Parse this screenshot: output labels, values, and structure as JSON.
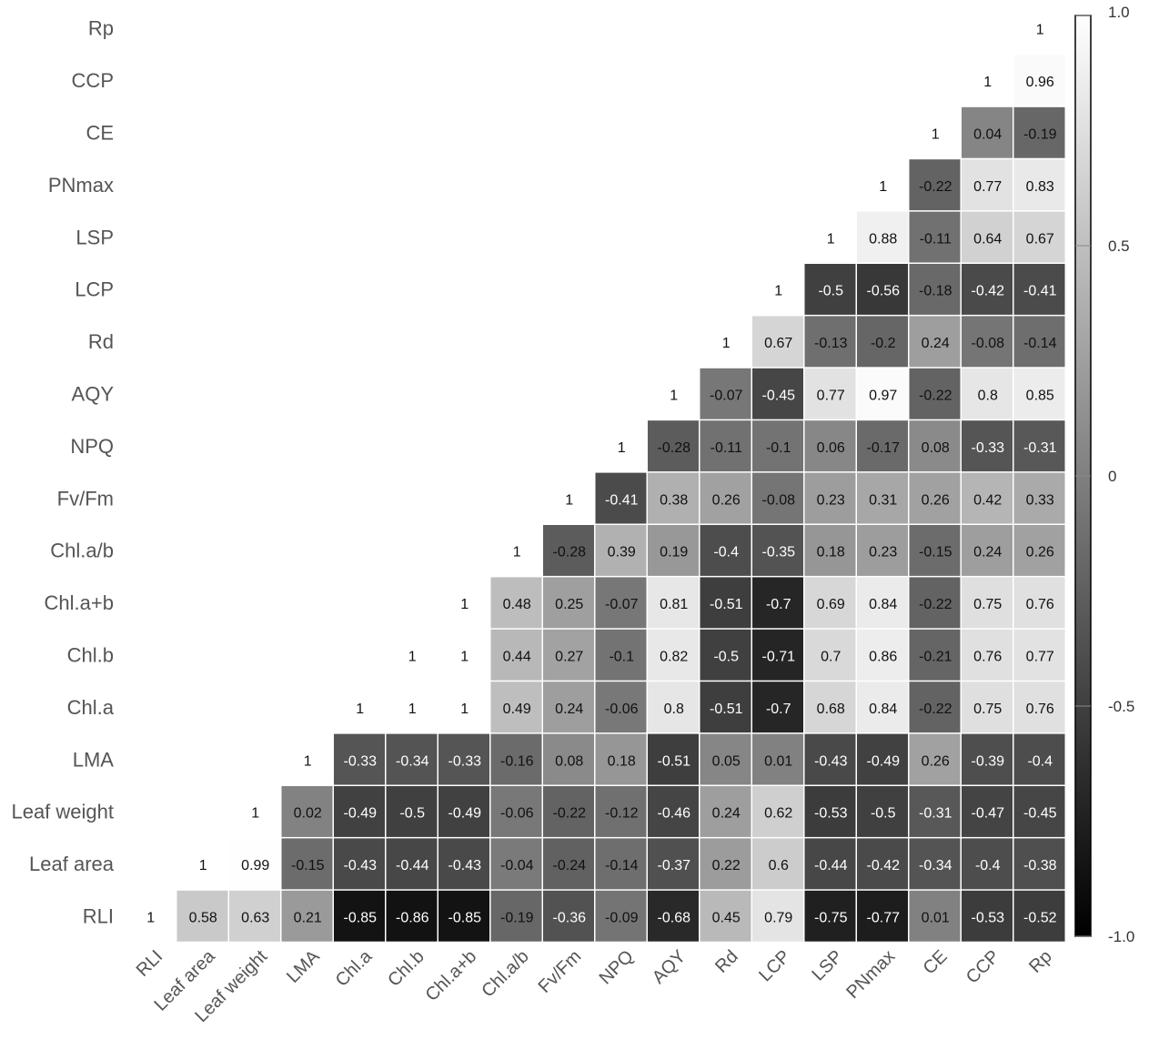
{
  "chart_data": {
    "type": "heatmap",
    "variables": [
      "RLI",
      "Leaf area",
      "Leaf weight",
      "LMA",
      "Chl.a",
      "Chl.b",
      "Chl.a+b",
      "Chl.a/b",
      "Fv/Fm",
      "NPQ",
      "AQY",
      "Rd",
      "LCP",
      "LSP",
      "PNmax",
      "CE",
      "CCP",
      "Rp"
    ],
    "row_order_top_to_bottom": [
      "Rp",
      "CCP",
      "CE",
      "PNmax",
      "LSP",
      "LCP",
      "Rd",
      "AQY",
      "NPQ",
      "Fv/Fm",
      "Chl.a/b",
      "Chl.a+b",
      "Chl.b",
      "Chl.a",
      "LMA",
      "Leaf weight",
      "Leaf area",
      "RLI"
    ],
    "column_order_left_to_right": [
      "RLI",
      "Leaf area",
      "Leaf weight",
      "LMA",
      "Chl.a",
      "Chl.b",
      "Chl.a+b",
      "Chl.a/b",
      "Fv/Fm",
      "NPQ",
      "AQY",
      "Rd",
      "LCP",
      "LSP",
      "PNmax",
      "CE",
      "CCP",
      "Rp"
    ],
    "rows": [
      {
        "name": "Rp",
        "values": [
          "1"
        ]
      },
      {
        "name": "CCP",
        "values": [
          "1",
          "0.96"
        ]
      },
      {
        "name": "CE",
        "values": [
          "1",
          "0.04",
          "-0.19"
        ]
      },
      {
        "name": "PNmax",
        "values": [
          "1",
          "-0.22",
          "0.77",
          "0.83"
        ]
      },
      {
        "name": "LSP",
        "values": [
          "1",
          "0.88",
          "-0.11",
          "0.64",
          "0.67"
        ]
      },
      {
        "name": "LCP",
        "values": [
          "1",
          "-0.5",
          "-0.56",
          "-0.18",
          "-0.42",
          "-0.41"
        ]
      },
      {
        "name": "Rd",
        "values": [
          "1",
          "0.67",
          "-0.13",
          "-0.2",
          "0.24",
          "-0.08",
          "-0.14"
        ]
      },
      {
        "name": "AQY",
        "values": [
          "1",
          "-0.07",
          "-0.45",
          "0.77",
          "0.97",
          "-0.22",
          "0.8",
          "0.85"
        ]
      },
      {
        "name": "NPQ",
        "values": [
          "1",
          "-0.28",
          "-0.11",
          "-0.1",
          "0.06",
          "-0.17",
          "0.08",
          "-0.33",
          "-0.31"
        ]
      },
      {
        "name": "Fv/Fm",
        "values": [
          "1",
          "-0.41",
          "0.38",
          "0.26",
          "-0.08",
          "0.23",
          "0.31",
          "0.26",
          "0.42",
          "0.33"
        ]
      },
      {
        "name": "Chl.a/b",
        "values": [
          "1",
          "-0.28",
          "0.39",
          "0.19",
          "-0.4",
          "-0.35",
          "0.18",
          "0.23",
          "-0.15",
          "0.24",
          "0.26"
        ]
      },
      {
        "name": "Chl.a+b",
        "values": [
          "1",
          "0.48",
          "0.25",
          "-0.07",
          "0.81",
          "-0.51",
          "-0.7",
          "0.69",
          "0.84",
          "-0.22",
          "0.75",
          "0.76"
        ]
      },
      {
        "name": "Chl.b",
        "values": [
          "1",
          "1",
          "0.44",
          "0.27",
          "-0.1",
          "0.82",
          "-0.5",
          "-0.71",
          "0.7",
          "0.86",
          "-0.21",
          "0.76",
          "0.77"
        ]
      },
      {
        "name": "Chl.a",
        "values": [
          "1",
          "1",
          "1",
          "0.49",
          "0.24",
          "-0.06",
          "0.8",
          "-0.51",
          "-0.7",
          "0.68",
          "0.84",
          "-0.22",
          "0.75",
          "0.76"
        ]
      },
      {
        "name": "LMA",
        "values": [
          "1",
          "-0.33",
          "-0.34",
          "-0.33",
          "-0.16",
          "0.08",
          "0.18",
          "-0.51",
          "0.05",
          "0.01",
          "-0.43",
          "-0.49",
          "0.26",
          "-0.39",
          "-0.4"
        ]
      },
      {
        "name": "Leaf weight",
        "values": [
          "1",
          "0.02",
          "-0.49",
          "-0.5",
          "-0.49",
          "-0.06",
          "-0.22",
          "-0.12",
          "-0.46",
          "0.24",
          "0.62",
          "-0.53",
          "-0.5",
          "-0.31",
          "-0.47",
          "-0.45"
        ]
      },
      {
        "name": "Leaf area",
        "values": [
          "1",
          "0.99",
          "-0.15",
          "-0.43",
          "-0.44",
          "-0.43",
          "-0.04",
          "-0.24",
          "-0.14",
          "-0.37",
          "0.22",
          "0.6",
          "-0.44",
          "-0.42",
          "-0.34",
          "-0.4",
          "-0.38"
        ]
      },
      {
        "name": "RLI",
        "values": [
          "1",
          "0.58",
          "0.63",
          "0.21",
          "-0.85",
          "-0.86",
          "-0.85",
          "-0.19",
          "-0.36",
          "-0.09",
          "-0.68",
          "0.45",
          "0.79",
          "-0.75",
          "-0.77",
          "0.01",
          "-0.53",
          "-0.52"
        ]
      }
    ],
    "diagonal_cells_unshaded": true,
    "color_scale": {
      "min": -1.0,
      "max": 1.0,
      "min_color": "#000000",
      "max_color": "#ffffff",
      "tick_labels": [
        "1.0",
        "0.5",
        "0",
        "-0.5",
        "-1.0"
      ],
      "tick_values": [
        1.0,
        0.5,
        0,
        -0.5,
        -1.0
      ]
    },
    "legend_position": "right",
    "grid": false
  }
}
